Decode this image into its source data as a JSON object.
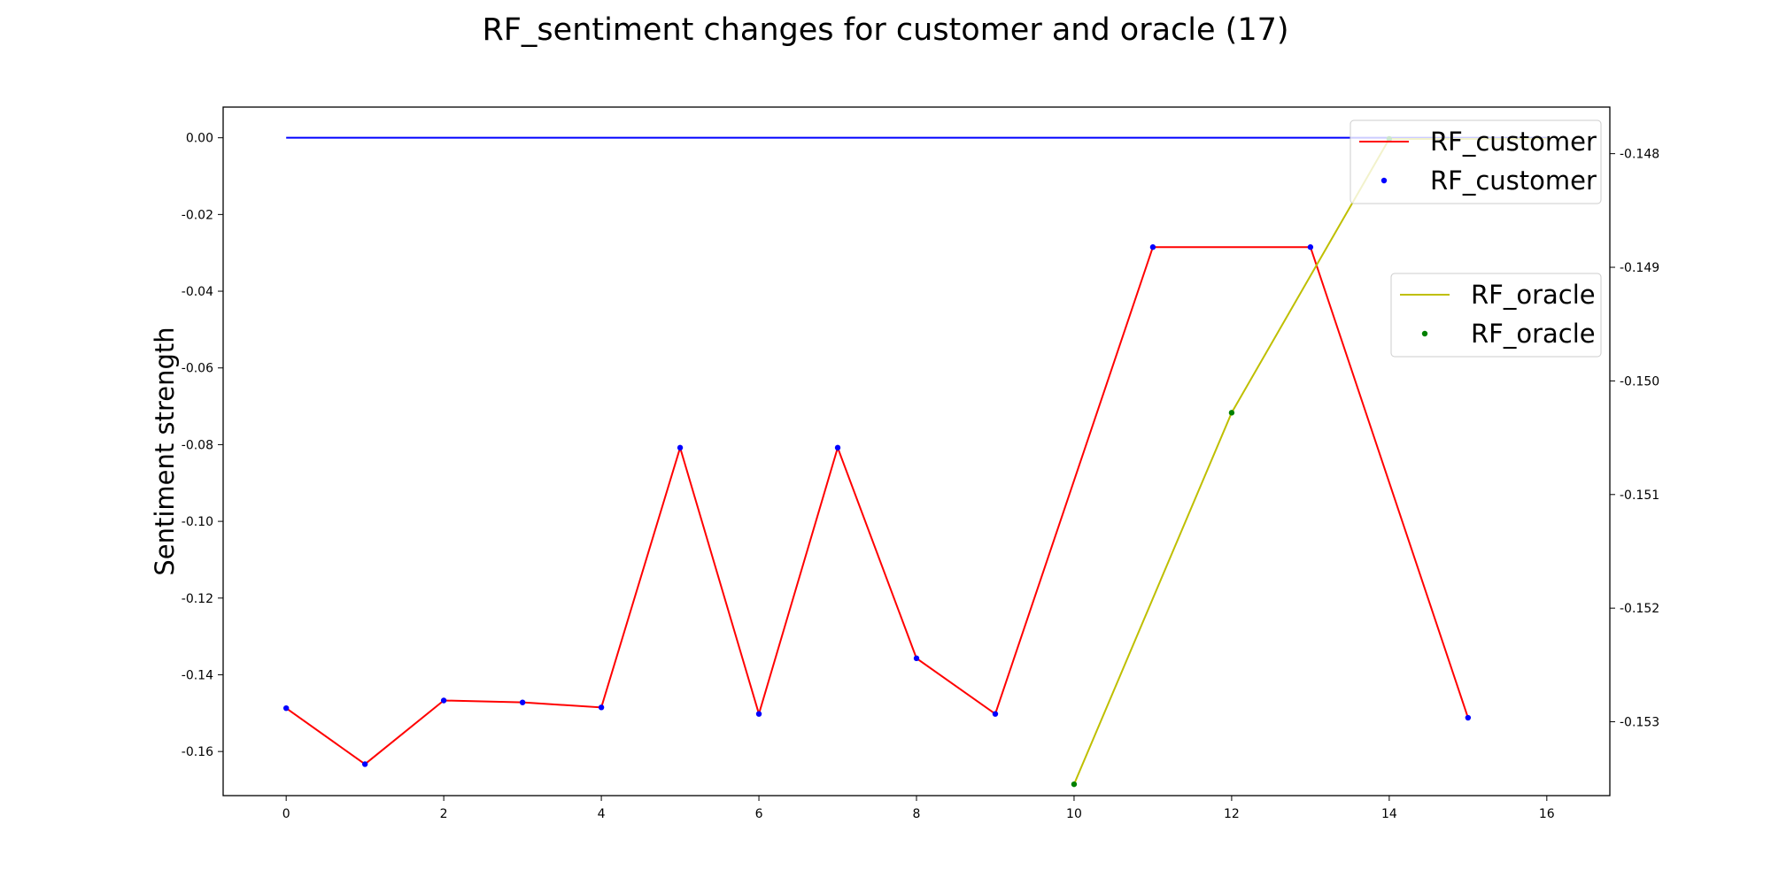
{
  "chart_data": {
    "type": "line",
    "title": "RF_sentiment changes for customer and oracle (17)",
    "xlabel": "",
    "ylabel": "Sentiment strength",
    "xlim": [
      -0.8,
      16.8
    ],
    "ylim_left": [
      -0.1715,
      0.008
    ],
    "ylim_right": [
      -0.15365,
      -0.14759
    ],
    "x_ticks": [
      0,
      2,
      4,
      6,
      8,
      10,
      12,
      14,
      16
    ],
    "y_ticks_left": [
      0.0,
      -0.02,
      -0.04,
      -0.06,
      -0.08,
      -0.1,
      -0.12,
      -0.14,
      -0.16
    ],
    "y_ticks_right": [
      -0.148,
      -0.149,
      -0.15,
      -0.151,
      -0.152,
      -0.153
    ],
    "y_tick_labels_left": [
      "0.00",
      "-0.02",
      "-0.04",
      "-0.06",
      "-0.08",
      "-0.10",
      "-0.12",
      "-0.14",
      "-0.16"
    ],
    "y_tick_labels_right": [
      "-0.148",
      "-0.149",
      "-0.150",
      "-0.151",
      "-0.152",
      "-0.153"
    ],
    "grid": false,
    "series": [
      {
        "name": "RF_customer",
        "axis": "left",
        "style": "line",
        "color": "#ff0000",
        "x": [
          0,
          1,
          2,
          3,
          4,
          5,
          6,
          7,
          8,
          9,
          11,
          13,
          15
        ],
        "y": [
          -0.1487,
          -0.1633,
          -0.1467,
          -0.1472,
          -0.1485,
          -0.0808,
          -0.1502,
          -0.0808,
          -0.1357,
          -0.1502,
          -0.0285,
          -0.0285,
          -0.1512
        ]
      },
      {
        "name": "RF_customer",
        "axis": "left",
        "style": "markers",
        "color": "#0000ff",
        "x": [
          0,
          1,
          2,
          3,
          4,
          5,
          6,
          7,
          8,
          9,
          11,
          13,
          15
        ],
        "y": [
          -0.1487,
          -0.1633,
          -0.1467,
          -0.1472,
          -0.1485,
          -0.0808,
          -0.1502,
          -0.0808,
          -0.1357,
          -0.1502,
          -0.0285,
          -0.0285,
          -0.1512
        ]
      },
      {
        "name": "",
        "axis": "left",
        "style": "line",
        "color": "#0000ff",
        "x": [
          0,
          16
        ],
        "y": [
          0.0,
          0.0
        ]
      },
      {
        "name": "RF_oracle",
        "axis": "right",
        "style": "line",
        "color": "#bfbf00",
        "x": [
          10,
          12,
          14,
          16
        ],
        "y": [
          -0.15355,
          -0.15028,
          -0.14787,
          -0.14787
        ]
      },
      {
        "name": "RF_oracle",
        "axis": "right",
        "style": "markers",
        "color": "#008000",
        "x": [
          10,
          12,
          14
        ],
        "y": [
          -0.15355,
          -0.15028,
          -0.14787
        ]
      }
    ],
    "legends": [
      {
        "placement": "top-right",
        "entries": [
          {
            "label": "RF_customer",
            "kind": "line",
            "color": "#ff0000"
          },
          {
            "label": "RF_customer",
            "kind": "marker",
            "color": "#0000ff"
          }
        ]
      },
      {
        "placement": "right",
        "entries": [
          {
            "label": "RF_oracle",
            "kind": "line",
            "color": "#bfbf00"
          },
          {
            "label": "RF_oracle",
            "kind": "marker",
            "color": "#008000"
          }
        ]
      }
    ]
  }
}
